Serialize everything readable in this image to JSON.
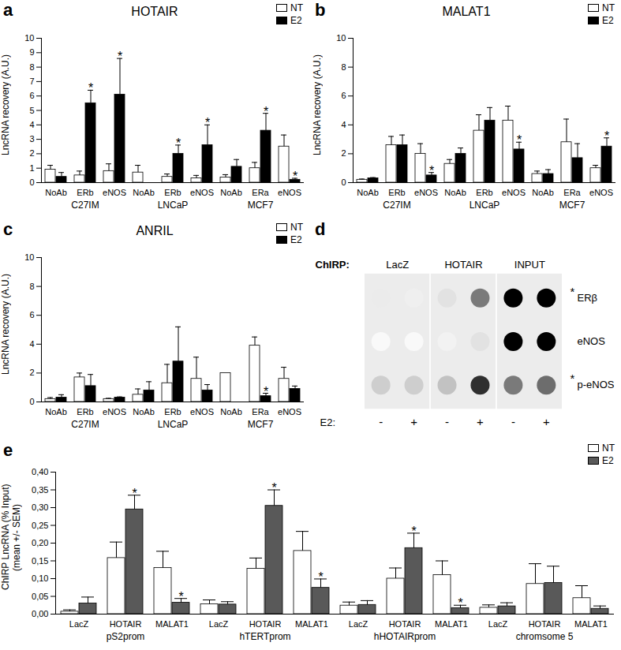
{
  "chart_data": [
    {
      "panel": "a",
      "type": "bar",
      "title": "HOTAIR",
      "ylabel": "LncRNA recovery (A.U.)",
      "categories": [
        "NoAb",
        "ERb",
        "eNOS",
        "NoAb",
        "ERb",
        "eNOS",
        "NoAb",
        "ERa",
        "eNOS"
      ],
      "category_groups": [
        "C27IM",
        "C27IM",
        "C27IM",
        "LNCaP",
        "LNCaP",
        "LNCaP",
        "MCF7",
        "MCF7",
        "MCF7"
      ],
      "ylim": [
        0,
        10
      ],
      "yticks": [
        0,
        1,
        2,
        3,
        4,
        5,
        6,
        7,
        8,
        9,
        10
      ],
      "legend": "top-right",
      "series": [
        {
          "name": "NT",
          "color": "#ffffff",
          "values": [
            0.9,
            0.5,
            0.8,
            0.7,
            0.4,
            0.3,
            0.35,
            1.0,
            2.5
          ],
          "errors": [
            0.3,
            0.3,
            0.5,
            0.5,
            0.2,
            0.2,
            0.2,
            0.4,
            0.8
          ],
          "significance": [
            null,
            null,
            null,
            null,
            null,
            null,
            null,
            null,
            null
          ]
        },
        {
          "name": "E2",
          "color": "#000000",
          "values": [
            0.4,
            5.5,
            6.1,
            null,
            2.0,
            2.6,
            1.1,
            3.6,
            0.2
          ],
          "errors": [
            0.3,
            0.9,
            2.5,
            null,
            0.6,
            1.4,
            0.5,
            1.2,
            0.1
          ],
          "significance": [
            null,
            "*",
            "*",
            null,
            "*",
            "*",
            null,
            "*",
            "*"
          ]
        }
      ]
    },
    {
      "panel": "b",
      "type": "bar",
      "title": "MALAT1",
      "ylabel": "LncRNA recovery (A.U.)",
      "categories": [
        "NoAb",
        "ERb",
        "eNOS",
        "NoAb",
        "ERb",
        "eNOS",
        "NoAb",
        "ERa",
        "eNOS"
      ],
      "category_groups": [
        "C27IM",
        "C27IM",
        "C27IM",
        "LNCaP",
        "LNCaP",
        "LNCaP",
        "MCF7",
        "MCF7",
        "MCF7"
      ],
      "ylim": [
        0,
        10
      ],
      "yticks": [
        0,
        2,
        4,
        6,
        8,
        10
      ],
      "legend": "top-right",
      "series": [
        {
          "name": "NT",
          "color": "#ffffff",
          "values": [
            0.2,
            2.6,
            2.0,
            1.3,
            3.6,
            4.3,
            0.6,
            2.8,
            1.0
          ],
          "errors": [
            0.05,
            0.6,
            0.7,
            0.3,
            1.1,
            1.0,
            0.2,
            1.6,
            0.2
          ],
          "significance": [
            null,
            null,
            null,
            null,
            null,
            null,
            null,
            null,
            null
          ]
        },
        {
          "name": "E2",
          "color": "#000000",
          "values": [
            0.3,
            2.6,
            0.5,
            2.0,
            4.3,
            2.3,
            0.6,
            1.7,
            2.5
          ],
          "errors": [
            0.05,
            0.7,
            0.2,
            0.4,
            0.9,
            0.5,
            0.3,
            1.0,
            0.6
          ],
          "significance": [
            null,
            null,
            "*",
            null,
            null,
            "*",
            null,
            null,
            "*"
          ]
        }
      ]
    },
    {
      "panel": "c",
      "type": "bar",
      "title": "ANRIL",
      "ylabel": "LncRNA recovery (A.U.)",
      "categories": [
        "NoAb",
        "ERb",
        "eNOS",
        "NoAb",
        "ERb",
        "eNOS",
        "NoAb",
        "ERa",
        "eNOS"
      ],
      "category_groups": [
        "C27IM",
        "C27IM",
        "C27IM",
        "LNCaP",
        "LNCaP",
        "LNCaP",
        "MCF7",
        "MCF7",
        "MCF7"
      ],
      "ylim": [
        0,
        10
      ],
      "yticks": [
        0,
        2,
        4,
        6,
        8,
        10
      ],
      "legend": "top-right",
      "series": [
        {
          "name": "NT",
          "color": "#ffffff",
          "values": [
            0.2,
            1.7,
            0.2,
            0.5,
            1.3,
            1.6,
            2.0,
            3.9,
            1.6
          ],
          "errors": [
            0.1,
            0.3,
            0.05,
            0.4,
            1.3,
            1.5,
            null,
            0.6,
            0.8
          ],
          "significance": [
            null,
            null,
            null,
            null,
            null,
            null,
            null,
            null,
            null
          ]
        },
        {
          "name": "E2",
          "color": "#000000",
          "values": [
            0.3,
            1.1,
            0.3,
            0.8,
            2.8,
            0.8,
            null,
            0.4,
            0.9
          ],
          "errors": [
            0.2,
            0.8,
            0.05,
            0.6,
            2.4,
            0.4,
            null,
            0.2,
            0.2
          ],
          "significance": [
            null,
            null,
            null,
            null,
            null,
            null,
            null,
            "*",
            null
          ]
        }
      ]
    },
    {
      "panel": "d",
      "type": "dot_blot",
      "title": "ChIRP:",
      "column_groups": [
        "LacZ",
        "HOTAIR",
        "INPUT"
      ],
      "conditions_label": "E2:",
      "conditions": [
        "-",
        "+"
      ],
      "rows": [
        {
          "name": "ERβ",
          "mark": "*",
          "intensity": [
            0.15,
            0.12,
            0.2,
            0.6,
            1,
            1
          ]
        },
        {
          "name": "eNOS",
          "intensity": [
            0.05,
            0.05,
            0.1,
            0.2,
            1,
            1
          ]
        },
        {
          "name": "p-eNOS",
          "mark": "*",
          "intensity": [
            0.3,
            0.3,
            0.35,
            0.85,
            0.6,
            0.65
          ]
        }
      ]
    },
    {
      "panel": "e",
      "type": "bar",
      "ylabel": "ChIRP LncRNA (% Input)\n(mean +/- SEM)",
      "categories": [
        "LacZ",
        "HOTAIR",
        "MALAT1",
        "LacZ",
        "HOTAIR",
        "MALAT1",
        "LacZ",
        "HOTAIR",
        "MALAT1",
        "LacZ",
        "HOTAIR",
        "MALAT1"
      ],
      "category_groups": [
        "pS2prom",
        "pS2prom",
        "pS2prom",
        "hTERTprom",
        "hTERTprom",
        "hTERTprom",
        "hHOTAIRprom",
        "hHOTAIRprom",
        "hHOTAIRprom",
        "chromsome 5",
        "chromsome 5",
        "chromsome 5"
      ],
      "ylim": [
        0,
        0.4
      ],
      "yticks": [
        {
          "value": 0,
          "label": "0,00"
        },
        {
          "value": 0.05,
          "label": "0,05"
        },
        {
          "value": 0.1,
          "label": "0,10"
        },
        {
          "value": 0.15,
          "label": "0,15"
        },
        {
          "value": 0.2,
          "label": "0,20"
        },
        {
          "value": 0.25,
          "label": "0,25"
        },
        {
          "value": 0.3,
          "label": "0,30"
        },
        {
          "value": 0.35,
          "label": "0,35"
        },
        {
          "value": 0.4,
          "label": "0,40"
        }
      ],
      "legend": "top-right",
      "series": [
        {
          "name": "NT",
          "color": "#ffffff",
          "values": [
            0.007,
            0.158,
            0.13,
            0.028,
            0.128,
            0.178,
            0.024,
            0.1,
            0.11,
            0.018,
            0.085,
            0.045
          ],
          "errors": [
            0.005,
            0.045,
            0.047,
            0.012,
            0.03,
            0.055,
            0.01,
            0.03,
            0.04,
            0.008,
            0.057,
            0.035
          ],
          "significance": [
            null,
            null,
            null,
            null,
            null,
            null,
            null,
            null,
            null,
            null,
            null,
            null
          ]
        },
        {
          "name": "E2",
          "color": "#595959",
          "values": [
            0.03,
            0.295,
            0.032,
            0.027,
            0.305,
            0.074,
            0.026,
            0.186,
            0.017,
            0.022,
            0.088,
            0.015
          ],
          "errors": [
            0.018,
            0.04,
            0.012,
            0.008,
            0.045,
            0.025,
            0.012,
            0.042,
            0.008,
            0.01,
            0.047,
            0.008
          ],
          "significance": [
            null,
            "*",
            "*",
            null,
            "*",
            "*",
            null,
            "*",
            "*",
            null,
            null,
            null
          ]
        }
      ]
    }
  ]
}
